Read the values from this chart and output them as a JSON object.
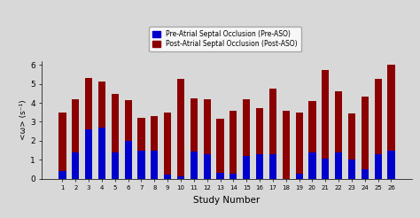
{
  "study_numbers": [
    1,
    2,
    3,
    4,
    5,
    6,
    7,
    8,
    9,
    10,
    11,
    12,
    13,
    14,
    15,
    16,
    17,
    18,
    19,
    20,
    21,
    22,
    23,
    24,
    25,
    26
  ],
  "pre_aso": [
    0.4,
    1.4,
    2.6,
    2.7,
    1.4,
    2.0,
    1.5,
    1.5,
    0.2,
    0.15,
    1.45,
    1.3,
    0.3,
    0.25,
    1.2,
    1.3,
    1.3,
    0.0,
    0.25,
    1.4,
    1.05,
    1.4,
    1.0,
    0.5,
    1.3,
    1.5
  ],
  "post_aso": [
    3.5,
    4.2,
    5.3,
    5.1,
    4.45,
    4.15,
    3.2,
    3.3,
    3.5,
    5.25,
    4.25,
    4.2,
    3.15,
    3.6,
    4.2,
    3.7,
    4.75,
    3.6,
    3.5,
    4.1,
    5.75,
    4.6,
    3.45,
    4.35,
    5.25,
    6.0
  ],
  "pre_color": "#0000CC",
  "post_color": "#8B0000",
  "xlabel": "Study Number",
  "ylabel": "<ω> (s⁻¹)",
  "ylim": [
    0,
    6.2
  ],
  "yticks": [
    0,
    1,
    2,
    3,
    4,
    5,
    6
  ],
  "legend_pre": "Pre-Atrial Septal Occlusion (Pre-ASO)",
  "legend_post": "Post-Atrial Septal Occlusion (Post-ASO)",
  "bg_color": "#d8d8d8",
  "bar_width": 0.55
}
